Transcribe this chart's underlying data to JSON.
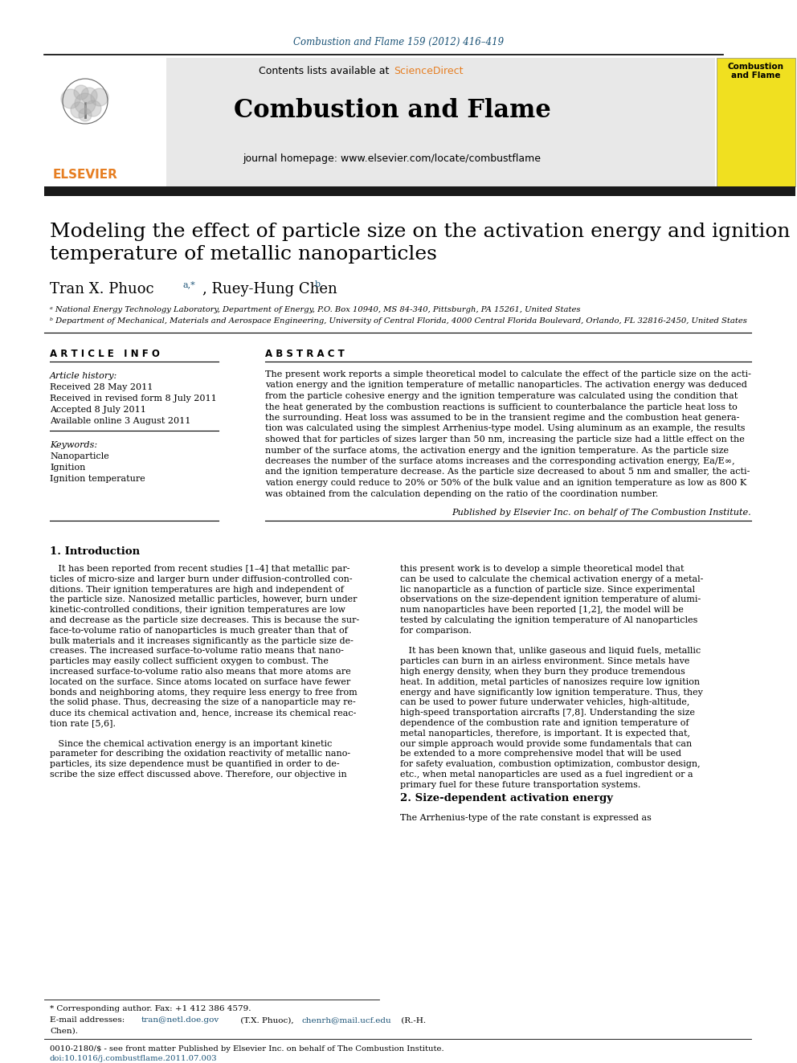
{
  "journal_ref": "Combustion and Flame 159 (2012) 416–419",
  "journal_ref_color": "#1a5276",
  "header_bg": "#e8e8e8",
  "contents_text": "Contents lists available at ",
  "sciencedirect_text": "ScienceDirect",
  "sciencedirect_color": "#e67e22",
  "journal_name": "Combustion and Flame",
  "homepage_text": "journal homepage: www.elsevier.com/locate/combustflame",
  "paper_title_line1": "Modeling the effect of particle size on the activation energy and ignition",
  "paper_title_line2": "temperature of metallic nanoparticles",
  "authors": "Tran X. Phuoc",
  "authors_super1": "a,*",
  "authors2": ", Ruey-Hung Chen",
  "authors_super2": "b",
  "affil_a": "ᵃ National Energy Technology Laboratory, Department of Energy, P.O. Box 10940, MS 84-340, Pittsburgh, PA 15261, United States",
  "affil_b": "ᵇ Department of Mechanical, Materials and Aerospace Engineering, University of Central Florida, 4000 Central Florida Boulevard, Orlando, FL 32816-2450, United States",
  "article_info_header": "A R T I C L E   I N F O",
  "abstract_header": "A B S T R A C T",
  "article_history_label": "Article history:",
  "received": "Received 28 May 2011",
  "received_revised": "Received in revised form 8 July 2011",
  "accepted": "Accepted 8 July 2011",
  "available": "Available online 3 August 2011",
  "keywords_label": "Keywords:",
  "keyword1": "Nanoparticle",
  "keyword2": "Ignition",
  "keyword3": "Ignition temperature",
  "published_by": "Published by Elsevier Inc. on behalf of The Combustion Institute.",
  "section1_title": "1. Introduction",
  "section2_title": "2. Size-dependent activation energy",
  "section2_intro": "The Arrhenius-type of the rate constant is expressed as",
  "footnote_star": "* Corresponding author. Fax: +1 412 386 4579.",
  "bottom_ref": "0010-2180/$ - see front matter Published by Elsevier Inc. on behalf of The Combustion Institute.",
  "bottom_doi": "doi:10.1016/j.combustflame.2011.07.003",
  "elsevier_color": "#e67e22",
  "thick_bar_color": "#1a1a1a",
  "link_color": "#1a5276",
  "abstract_lines": [
    "The present work reports a simple theoretical model to calculate the effect of the particle size on the acti-",
    "vation energy and the ignition temperature of metallic nanoparticles. The activation energy was deduced",
    "from the particle cohesive energy and the ignition temperature was calculated using the condition that",
    "the heat generated by the combustion reactions is sufficient to counterbalance the particle heat loss to",
    "the surrounding. Heat loss was assumed to be in the transient regime and the combustion heat genera-",
    "tion was calculated using the simplest Arrhenius-type model. Using aluminum as an example, the results",
    "showed that for particles of sizes larger than 50 nm, increasing the particle size had a little effect on the",
    "number of the surface atoms, the activation energy and the ignition temperature. As the particle size",
    "decreases the number of the surface atoms increases and the corresponding activation energy, Ea/E∞,",
    "and the ignition temperature decrease. As the particle size decreased to about 5 nm and smaller, the acti-",
    "vation energy could reduce to 20% or 50% of the bulk value and an ignition temperature as low as 800 K",
    "was obtained from the calculation depending on the ratio of the coordination number."
  ],
  "intro_left_lines": [
    "   It has been reported from recent studies [1–4] that metallic par-",
    "ticles of micro-size and larger burn under diffusion-controlled con-",
    "ditions. Their ignition temperatures are high and independent of",
    "the particle size. Nanosized metallic particles, however, burn under",
    "kinetic-controlled conditions, their ignition temperatures are low",
    "and decrease as the particle size decreases. This is because the sur-",
    "face-to-volume ratio of nanoparticles is much greater than that of",
    "bulk materials and it increases significantly as the particle size de-",
    "creases. The increased surface-to-volume ratio means that nano-",
    "particles may easily collect sufficient oxygen to combust. The",
    "increased surface-to-volume ratio also means that more atoms are",
    "located on the surface. Since atoms located on surface have fewer",
    "bonds and neighboring atoms, they require less energy to free from",
    "the solid phase. Thus, decreasing the size of a nanoparticle may re-",
    "duce its chemical activation and, hence, increase its chemical reac-",
    "tion rate [5,6].",
    "",
    "   Since the chemical activation energy is an important kinetic",
    "parameter for describing the oxidation reactivity of metallic nano-",
    "particles, its size dependence must be quantified in order to de-",
    "scribe the size effect discussed above. Therefore, our objective in"
  ],
  "intro_right_lines": [
    "this present work is to develop a simple theoretical model that",
    "can be used to calculate the chemical activation energy of a metal-",
    "lic nanoparticle as a function of particle size. Since experimental",
    "observations on the size-dependent ignition temperature of alumi-",
    "num nanoparticles have been reported [1,2], the model will be",
    "tested by calculating the ignition temperature of Al nanoparticles",
    "for comparison.",
    "",
    "   It has been known that, unlike gaseous and liquid fuels, metallic",
    "particles can burn in an airless environment. Since metals have",
    "high energy density, when they burn they produce tremendous",
    "heat. In addition, metal particles of nanosizes require low ignition",
    "energy and have significantly low ignition temperature. Thus, they",
    "can be used to power future underwater vehicles, high-altitude,",
    "high-speed transportation aircrafts [7,8]. Understanding the size",
    "dependence of the combustion rate and ignition temperature of",
    "metal nanoparticles, therefore, is important. It is expected that,",
    "our simple approach would provide some fundamentals that can",
    "be extended to a more comprehensive model that will be used",
    "for safety evaluation, combustion optimization, combustor design,",
    "etc., when metal nanoparticles are used as a fuel ingredient or a",
    "primary fuel for these future transportation systems."
  ]
}
